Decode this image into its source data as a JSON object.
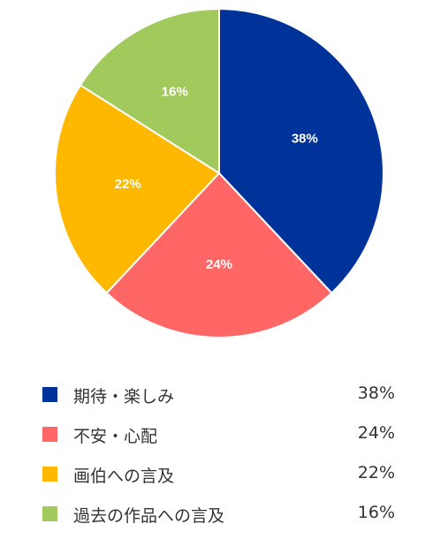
{
  "chart_data": {
    "type": "pie",
    "categories": [
      "期待・楽しみ",
      "不安・心配",
      "画伯への言及",
      "過去の作品への言及"
    ],
    "values": [
      38,
      24,
      22,
      16
    ],
    "value_labels": [
      "38%",
      "24%",
      "22%",
      "16%"
    ],
    "colors": [
      "#003399",
      "#ff6666",
      "#ffb800",
      "#a2c95b"
    ],
    "start_angle": "12 o'clock",
    "direction": "clockwise",
    "legend_placement": "bottom"
  }
}
